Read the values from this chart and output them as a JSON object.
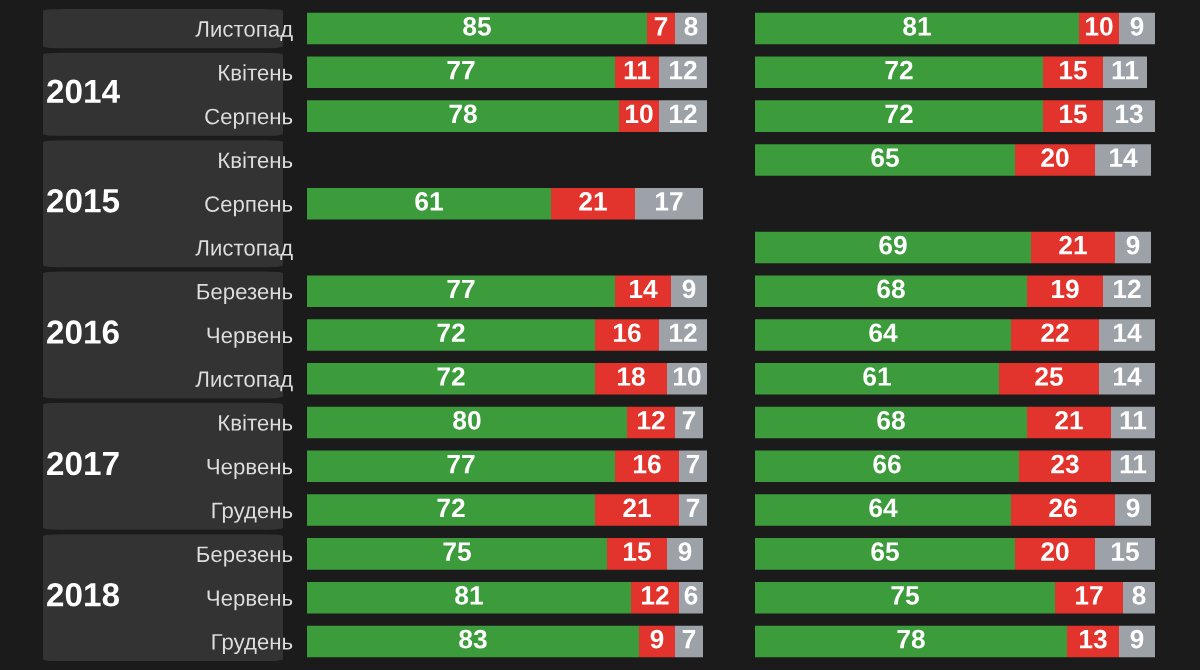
{
  "chart_data": [
    {
      "type": "bar",
      "orientation": "horizontal",
      "stacked": true,
      "data_labels": true,
      "legend": false,
      "grid": false,
      "categories": [
        "Листопад",
        "Квітень",
        "Серпень",
        "Квітень",
        "Серпень",
        "Листопад",
        "Березень",
        "Червень",
        "Листопад",
        "Квітень",
        "Червень",
        "Грудень",
        "Березень",
        "Червень",
        "Грудень"
      ],
      "annotations": [
        "2014",
        "2015",
        "2016",
        "2017",
        "2018"
      ],
      "tick_labels": "y",
      "series": [
        {
          "color": "#3c9c3c",
          "values": [
            85,
            77,
            78,
            null,
            61,
            null,
            77,
            72,
            72,
            80,
            77,
            72,
            75,
            81,
            83
          ]
        },
        {
          "color": "#e2342c",
          "values": [
            7,
            11,
            10,
            null,
            21,
            null,
            14,
            16,
            18,
            12,
            16,
            21,
            15,
            12,
            9
          ]
        },
        {
          "color": "#9da2a8",
          "values": [
            8,
            12,
            12,
            null,
            17,
            null,
            9,
            12,
            10,
            7,
            7,
            7,
            9,
            6,
            7
          ]
        }
      ]
    },
    {
      "type": "bar",
      "orientation": "horizontal",
      "stacked": true,
      "data_labels": true,
      "legend": false,
      "grid": false,
      "categories": [
        null,
        null,
        null,
        null,
        null,
        null,
        null,
        null,
        null,
        null,
        null,
        null,
        null,
        null,
        null
      ],
      "tick_labels": false,
      "series": [
        {
          "color": "#3c9c3c",
          "values": [
            81,
            72,
            72,
            65,
            null,
            69,
            68,
            64,
            61,
            68,
            66,
            64,
            65,
            75,
            78
          ]
        },
        {
          "color": "#e2342c",
          "values": [
            10,
            15,
            15,
            20,
            null,
            21,
            19,
            22,
            25,
            21,
            23,
            26,
            20,
            17,
            13
          ]
        },
        {
          "color": "#9da2a8",
          "values": [
            9,
            11,
            13,
            14,
            null,
            9,
            12,
            14,
            14,
            11,
            11,
            9,
            15,
            8,
            9
          ]
        }
      ]
    }
  ]
}
